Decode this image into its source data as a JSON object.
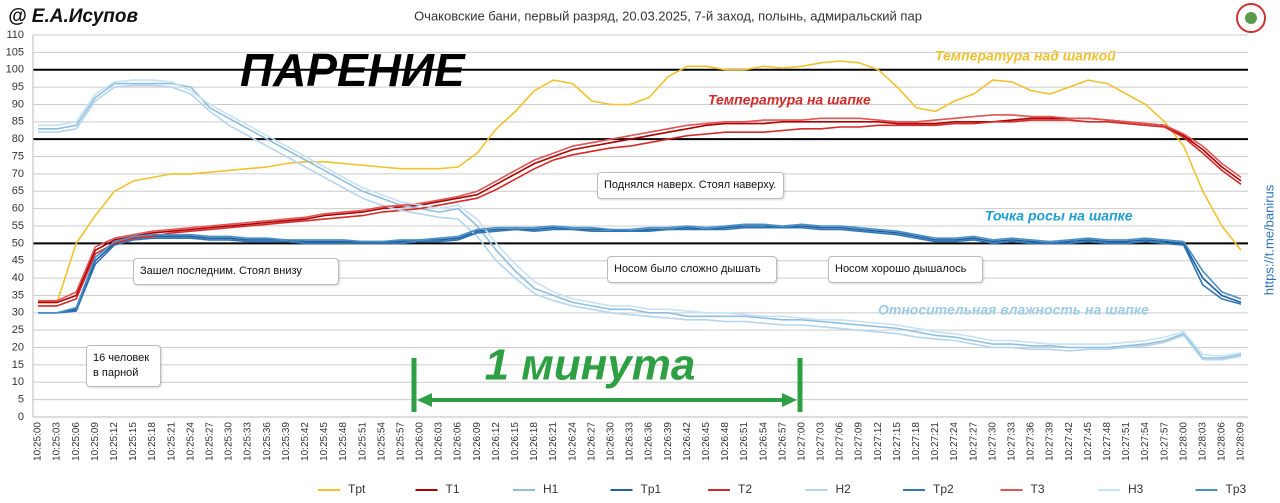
{
  "chart_data": {
    "type": "line",
    "author": "@ Е.А.Исупов",
    "title": "Очаковские бани, первый разряд, 20.03.2025, 7-й заход, полынь, адмиральский пар",
    "heading": "ПАРЕНИЕ",
    "link": "https://t.me/banirus",
    "span_label": "1 минута",
    "annotations": [
      "Температура над шапкой",
      "Температура на шапке",
      "Точка росы на шапке",
      "Относительная влажность на шапке"
    ],
    "notes": [
      "Поднялся наверх. Стоял наверху.",
      "Зашел последним. Стоял внизу",
      "Носом было сложно дышать",
      "Носом хорошо дышалось",
      "16 человек в парной"
    ],
    "ylim": [
      0,
      110
    ],
    "yticks": [
      0,
      5,
      10,
      15,
      20,
      25,
      30,
      35,
      40,
      45,
      50,
      55,
      60,
      65,
      70,
      75,
      80,
      85,
      90,
      95,
      100,
      105,
      110
    ],
    "grid": true,
    "reference_lines": [
      50,
      80,
      100
    ],
    "legend": "bottom",
    "categories": [
      "10:25:00",
      "10:25:03",
      "10:25:06",
      "10:25:09",
      "10:25:12",
      "10:25:15",
      "10:25:18",
      "10:25:21",
      "10:25:24",
      "10:25:27",
      "10:25:30",
      "10:25:33",
      "10:25:36",
      "10:25:39",
      "10:25:42",
      "10:25:45",
      "10:25:48",
      "10:25:51",
      "10:25:54",
      "10:25:57",
      "10:26:00",
      "10:26:03",
      "10:26:06",
      "10:26:09",
      "10:26:12",
      "10:26:15",
      "10:26:18",
      "10:26:21",
      "10:26:24",
      "10:26:27",
      "10:26:30",
      "10:26:33",
      "10:26:36",
      "10:26:39",
      "10:26:42",
      "10:26:45",
      "10:26:48",
      "10:26:51",
      "10:26:54",
      "10:26:57",
      "10:27:00",
      "10:27:03",
      "10:27:06",
      "10:27:09",
      "10:27:12",
      "10:27:15",
      "10:27:18",
      "10:27:21",
      "10:27:24",
      "10:27:27",
      "10:27:30",
      "10:27:33",
      "10:27:36",
      "10:27:39",
      "10:27:42",
      "10:27:45",
      "10:27:48",
      "10:27:51",
      "10:27:54",
      "10:27:57",
      "10:28:00",
      "10:28:03",
      "10:28:06",
      "10:28:09"
    ],
    "series": [
      {
        "name": "Tpt",
        "color": "#f2c12e",
        "values": [
          33,
          33,
          50,
          58,
          65,
          68,
          69,
          70,
          70,
          70.5,
          71,
          71.5,
          72,
          73,
          73.5,
          73.5,
          73,
          72.5,
          72,
          71.5,
          71.5,
          71.5,
          72,
          76,
          83,
          88,
          94,
          97,
          96,
          91,
          90,
          90,
          92,
          98,
          101,
          101,
          100,
          100,
          101,
          100.5,
          101,
          102,
          102.5,
          102,
          100,
          95,
          89,
          88,
          91,
          93,
          97,
          96.5,
          94,
          93,
          95,
          97,
          96,
          93,
          90,
          85,
          78,
          65,
          55,
          48
        ]
      },
      {
        "name": "T1",
        "color": "#b00000",
        "values": [
          33,
          33,
          35,
          48,
          51,
          52,
          53,
          53.5,
          54,
          54.5,
          55,
          55.5,
          56,
          56.5,
          57,
          58,
          58.5,
          59,
          60,
          60.5,
          61,
          62,
          63,
          64,
          67,
          70,
          73,
          75,
          77,
          78,
          79,
          80,
          81,
          82,
          83,
          84,
          84.5,
          84.5,
          84.5,
          85,
          85,
          85,
          85,
          85,
          85,
          84.5,
          84.5,
          84.5,
          85,
          85,
          85,
          85.5,
          86,
          86,
          86,
          86,
          85.5,
          85,
          84.5,
          84,
          81,
          77,
          72,
          68
        ]
      },
      {
        "name": "H1",
        "color": "#8fbfe0",
        "values": [
          83,
          83,
          84,
          92,
          96,
          96,
          96,
          96,
          95,
          89,
          86,
          83,
          80,
          77,
          74,
          71,
          68,
          65,
          63,
          61,
          60,
          59,
          60,
          55,
          48,
          42,
          37,
          35,
          33,
          32,
          31,
          31,
          30,
          30,
          29,
          29,
          29,
          29,
          28.5,
          28,
          28,
          27.5,
          27,
          26.5,
          26,
          25.5,
          24.5,
          23.5,
          23,
          22,
          21,
          21,
          20.5,
          20.5,
          20,
          20,
          20,
          20.5,
          21,
          22,
          24,
          17,
          17,
          18
        ]
      },
      {
        "name": "Tp1",
        "color": "#1f5fa0",
        "values": [
          30,
          30,
          31,
          45,
          50,
          51.5,
          52,
          52,
          52,
          51.5,
          51.5,
          51,
          51,
          51,
          50.5,
          50.5,
          50.5,
          50.5,
          50.5,
          50.5,
          51,
          51,
          51.5,
          53.5,
          54,
          54,
          54,
          54.5,
          54,
          54,
          54,
          53.5,
          54,
          54,
          54.5,
          54,
          54.5,
          55,
          55,
          54.5,
          55,
          54.5,
          54.5,
          54,
          53.5,
          53,
          52,
          51,
          51,
          51.5,
          50.5,
          51,
          50.5,
          50,
          50.5,
          51,
          50.5,
          50.5,
          51,
          50.5,
          50,
          40,
          35,
          33
        ]
      },
      {
        "name": "T2",
        "color": "#d42a2a",
        "values": [
          32,
          32,
          34,
          47,
          50,
          51.5,
          52,
          53,
          53.5,
          54,
          54.5,
          55,
          55.5,
          56,
          56.5,
          57,
          57.5,
          58,
          59,
          59.5,
          60,
          61,
          62,
          63,
          65.5,
          68.5,
          71.5,
          74,
          75.5,
          76.5,
          77.5,
          78,
          79,
          80,
          81,
          81.5,
          82,
          82,
          82,
          82.5,
          83,
          83,
          83.5,
          83.5,
          84,
          84,
          84,
          84,
          84.5,
          84.5,
          85,
          85,
          85.5,
          85.5,
          85.5,
          85,
          85,
          84.5,
          84,
          83.5,
          80.5,
          76,
          71,
          67
        ]
      },
      {
        "name": "H2",
        "color": "#b5d5ee",
        "values": [
          82,
          82,
          83,
          91,
          95,
          95.5,
          95.5,
          95,
          93,
          88,
          84,
          81,
          78,
          75,
          72,
          69,
          66,
          63,
          61,
          59.5,
          58.5,
          57.5,
          57,
          52,
          45,
          40,
          35.5,
          33.5,
          32,
          31,
          30,
          29.5,
          29,
          28.5,
          28,
          28,
          27.5,
          27.5,
          27,
          26.5,
          26.5,
          26,
          25.5,
          25,
          24.5,
          24,
          23,
          22.5,
          22,
          21,
          20,
          20,
          19.5,
          19.5,
          19,
          19.5,
          19.5,
          20,
          20.5,
          21.5,
          23.5,
          16.5,
          16.5,
          17.5
        ]
      },
      {
        "name": "Tp2",
        "color": "#2e75b6",
        "values": [
          30,
          30,
          30.5,
          44,
          49.5,
          51,
          51.5,
          51.5,
          51.5,
          51,
          51,
          50.5,
          50.5,
          50.5,
          50,
          50,
          50,
          50,
          50,
          50,
          50.5,
          50.5,
          51,
          53,
          53.5,
          54,
          53.5,
          54,
          54,
          53.5,
          53.5,
          53.5,
          53.5,
          54,
          54,
          54,
          54,
          54.5,
          54.5,
          54.5,
          54.5,
          54,
          54,
          53.5,
          53,
          52.5,
          51.5,
          50.5,
          50.5,
          51,
          50,
          50.5,
          50,
          50,
          50,
          50.5,
          50,
          50,
          50.5,
          50,
          49.5,
          38,
          34,
          32.5
        ]
      },
      {
        "name": "T3",
        "color": "#e05555",
        "values": [
          33.5,
          33.5,
          36,
          49,
          51.5,
          52.5,
          53.5,
          54,
          54.5,
          55,
          55.5,
          56,
          56.5,
          57,
          57.5,
          58.5,
          59,
          59.5,
          60.5,
          61,
          61.5,
          62.5,
          63.5,
          65,
          68,
          71,
          74,
          76,
          78,
          79,
          80,
          81,
          82,
          83,
          84,
          84.5,
          85,
          85,
          85.5,
          85.5,
          85.5,
          86,
          86,
          86,
          85.5,
          85,
          85,
          85.5,
          86,
          86.5,
          87,
          87,
          86.5,
          86.5,
          86,
          86,
          85.5,
          85,
          84.5,
          84,
          81.5,
          78,
          73,
          69
        ]
      },
      {
        "name": "H3",
        "color": "#c8e2f2",
        "values": [
          84,
          84,
          85,
          93,
          96.5,
          97,
          97,
          96.5,
          94,
          90,
          87,
          84,
          81,
          78,
          75,
          72,
          69,
          66,
          64,
          62,
          61,
          60,
          61,
          57,
          50,
          44,
          39,
          36,
          34,
          33,
          32,
          32,
          31,
          31,
          30.5,
          30,
          30,
          29.5,
          29,
          29,
          28.5,
          28,
          28,
          27.5,
          27,
          26.5,
          25.5,
          24.5,
          24,
          23,
          22,
          22,
          21.5,
          21,
          21,
          21,
          21,
          21.5,
          22,
          23,
          24.5,
          18,
          17.5,
          18.5
        ]
      },
      {
        "name": "Tp3",
        "color": "#4a90c4",
        "values": [
          30,
          30,
          31.5,
          46,
          50.5,
          52,
          52.5,
          52.5,
          52.5,
          52,
          52,
          51.5,
          51.5,
          51,
          51,
          51,
          51,
          50.5,
          50.5,
          51,
          51,
          51.5,
          52,
          54,
          54.5,
          54.5,
          54.5,
          55,
          54.5,
          54.5,
          54,
          54,
          54.5,
          54.5,
          55,
          54.5,
          55,
          55.5,
          55.5,
          55,
          55.5,
          55,
          55,
          54.5,
          54,
          53.5,
          52.5,
          51.5,
          51.5,
          52,
          51,
          51.5,
          51,
          50.5,
          51,
          51.5,
          51,
          51,
          51.5,
          51,
          50.5,
          42,
          36,
          34
        ]
      }
    ]
  }
}
